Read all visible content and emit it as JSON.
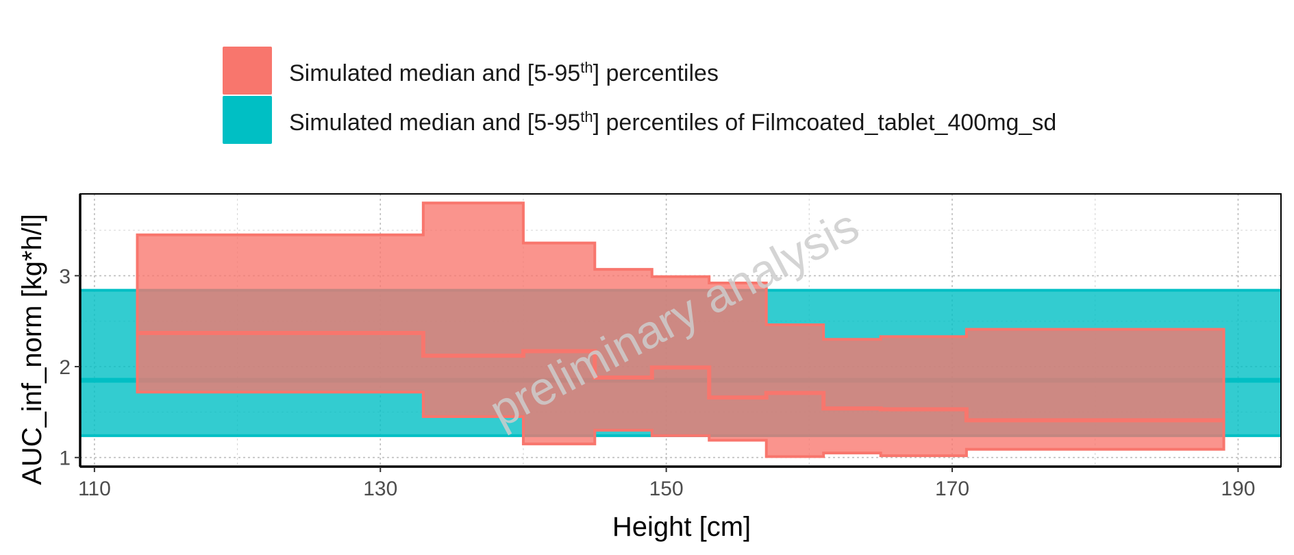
{
  "chart_data": {
    "type": "area",
    "xlabel": "Height [cm]",
    "ylabel": "AUC_inf_norm [kg*h/l]",
    "xlim": [
      109,
      193
    ],
    "ylim": [
      0.9,
      3.9
    ],
    "x_ticks": [
      110,
      130,
      150,
      170,
      190
    ],
    "y_ticks": [
      1,
      2,
      3
    ],
    "grid": true,
    "legend_position": "top",
    "watermark": "preliminary analysis",
    "reference": {
      "name": "Simulated median and [5-95th] percentiles of Filmcoated_tablet_400mg_sd",
      "color": "#00BFC4",
      "median": 1.85,
      "p5": 1.24,
      "p95": 2.84
    },
    "series": [
      {
        "name": "Simulated median and [5-95th] percentiles",
        "color": "#F8766D",
        "bins": [
          {
            "x_start": 113,
            "x_end": 133,
            "median": 2.37,
            "p5": 1.72,
            "p95": 3.45
          },
          {
            "x_start": 133,
            "x_end": 140,
            "median": 2.12,
            "p5": 1.45,
            "p95": 3.8
          },
          {
            "x_start": 140,
            "x_end": 145,
            "median": 2.17,
            "p5": 1.15,
            "p95": 3.36
          },
          {
            "x_start": 145,
            "x_end": 149,
            "median": 1.88,
            "p5": 1.3,
            "p95": 3.07
          },
          {
            "x_start": 149,
            "x_end": 153,
            "median": 1.99,
            "p5": 1.24,
            "p95": 2.99
          },
          {
            "x_start": 153,
            "x_end": 157,
            "median": 1.66,
            "p5": 1.19,
            "p95": 2.92
          },
          {
            "x_start": 157,
            "x_end": 161,
            "median": 1.71,
            "p5": 1.01,
            "p95": 2.46
          },
          {
            "x_start": 161,
            "x_end": 165,
            "median": 1.54,
            "p5": 1.05,
            "p95": 2.3
          },
          {
            "x_start": 165,
            "x_end": 171,
            "median": 1.53,
            "p5": 1.02,
            "p95": 2.33
          },
          {
            "x_start": 171,
            "x_end": 189,
            "median": 1.41,
            "p5": 1.09,
            "p95": 2.41
          }
        ]
      }
    ]
  },
  "legend": {
    "items": [
      {
        "pre": "Simulated median and [5-95",
        "sup": "th",
        "post": "] percentiles",
        "color": "#F8766D"
      },
      {
        "pre": "Simulated median and [5-95",
        "sup": "th",
        "post": "] percentiles of Filmcoated_tablet_400mg_sd",
        "color": "#00BFC4"
      }
    ]
  }
}
